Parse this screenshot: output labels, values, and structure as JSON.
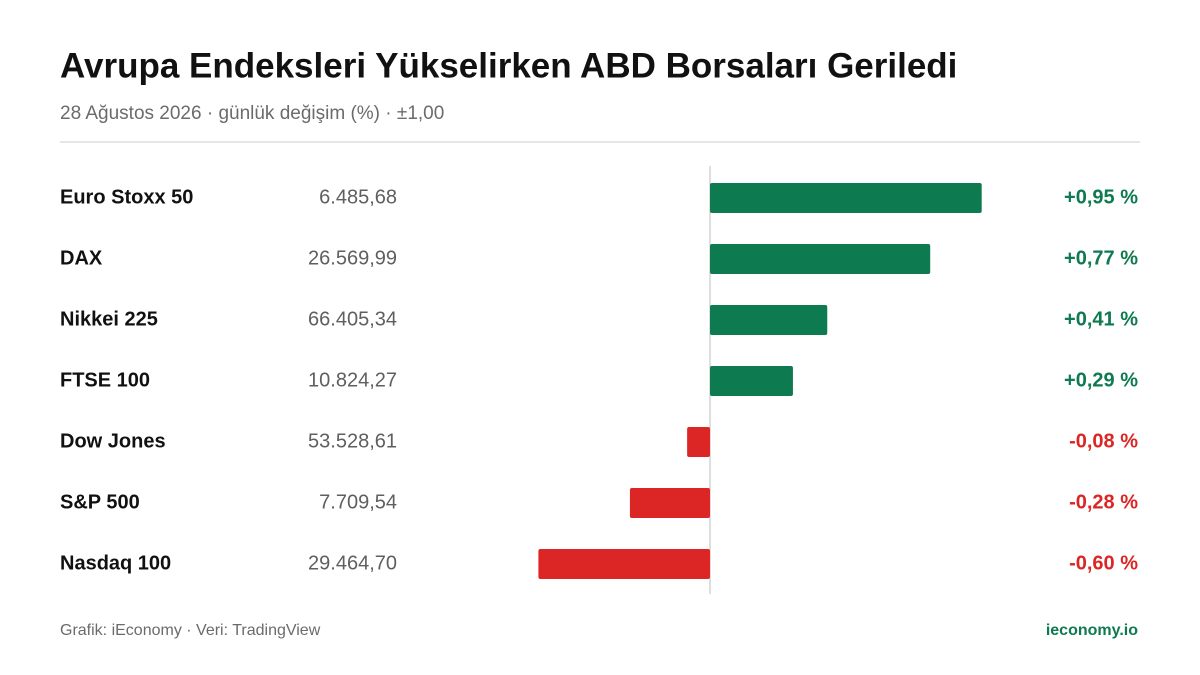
{
  "chart_data": {
    "type": "bar",
    "orientation": "horizontal",
    "title": "Avrupa Endeksleri Yükselirken ABD Borsaları Geriledi",
    "subtitle": "28 Ağustos 2026 · günlük değişim (%) · ±1,00",
    "categories": [
      "Euro Stoxx 50",
      "DAX",
      "Nikkei 225",
      "FTSE 100",
      "Dow Jones",
      "S&P 500",
      "Nasdaq 100"
    ],
    "levels": [
      "6.485,68",
      "26.569,99",
      "66.405,34",
      "10.824,27",
      "53.528,61",
      "7.709,54",
      "29.464,70"
    ],
    "values": [
      0.95,
      0.77,
      0.41,
      0.29,
      -0.08,
      -0.28,
      -0.6
    ],
    "value_labels": [
      "+0,95 %",
      "+0,77 %",
      "+0,41 %",
      "+0,29 %",
      "-0,08 %",
      "-0,28 %",
      "-0,60 %"
    ],
    "xlim": [
      -1,
      1
    ],
    "positive_color": "#0e7a4f",
    "negative_color": "#dc2626",
    "source": "Grafik: iEconomy · Veri: TradingView",
    "brand": "ieconomy.io"
  }
}
